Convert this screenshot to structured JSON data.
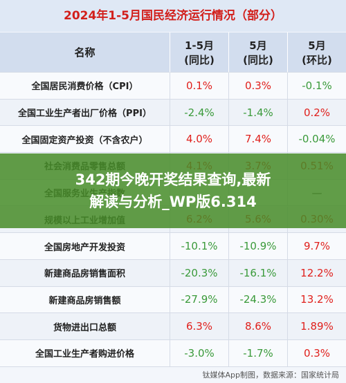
{
  "header": {
    "title": "2024年1-5月国民经济运行情况（部分）"
  },
  "table": {
    "columns": [
      [
        "名称"
      ],
      [
        "1-5月",
        "(同比)"
      ],
      [
        "5月",
        "(同比)"
      ],
      [
        "5月",
        "(环比)"
      ]
    ],
    "rows": [
      {
        "name": "全国居民消费价格（CPI）",
        "values": [
          "0.1%",
          "0.3%",
          "-0.1%"
        ]
      },
      {
        "name": "全国工业生产者出厂价格（PPI）",
        "values": [
          "-2.4%",
          "-1.4%",
          "0.2%"
        ]
      },
      {
        "name": "全国固定资产投资（不含农户）",
        "values": [
          "4.0%",
          "7.4%",
          "-0.04%"
        ]
      },
      {
        "name": "社会消费品零售总额",
        "values": [
          "4.1%",
          "3.7%",
          "0.51%"
        ]
      },
      {
        "name": "全国服务业生产指数",
        "values": [
          null,
          null,
          "—"
        ]
      },
      {
        "name": "规模以上工业增加值",
        "values": [
          "6.2%",
          "5.6%",
          "0.30%"
        ]
      },
      {
        "name": "全国房地产开发投资",
        "values": [
          "-10.1%",
          "-10.9%",
          "9.7%"
        ]
      },
      {
        "name": "新建商品房销售面积",
        "values": [
          "-20.3%",
          "-16.1%",
          "12.2%"
        ]
      },
      {
        "name": "新建商品房销售额",
        "values": [
          "-27.9%",
          "-24.3%",
          "13.2%"
        ]
      },
      {
        "name": "货物进出口总额",
        "values": [
          "6.3%",
          "8.6%",
          "1.89%"
        ]
      },
      {
        "name": "全国工业生产者购进价格",
        "values": [
          "-3.0%",
          "-1.7%",
          "0.3%"
        ]
      }
    ],
    "positive_color": "#e0201c",
    "negative_color": "#3a9a3a"
  },
  "overlay": {
    "lines": [
      "342期今晚开奖结果查询,最新",
      "解读与分析_WP版6.314"
    ]
  },
  "footer": {
    "source": "钛媒体App制图，数据来源：国家统计局"
  }
}
